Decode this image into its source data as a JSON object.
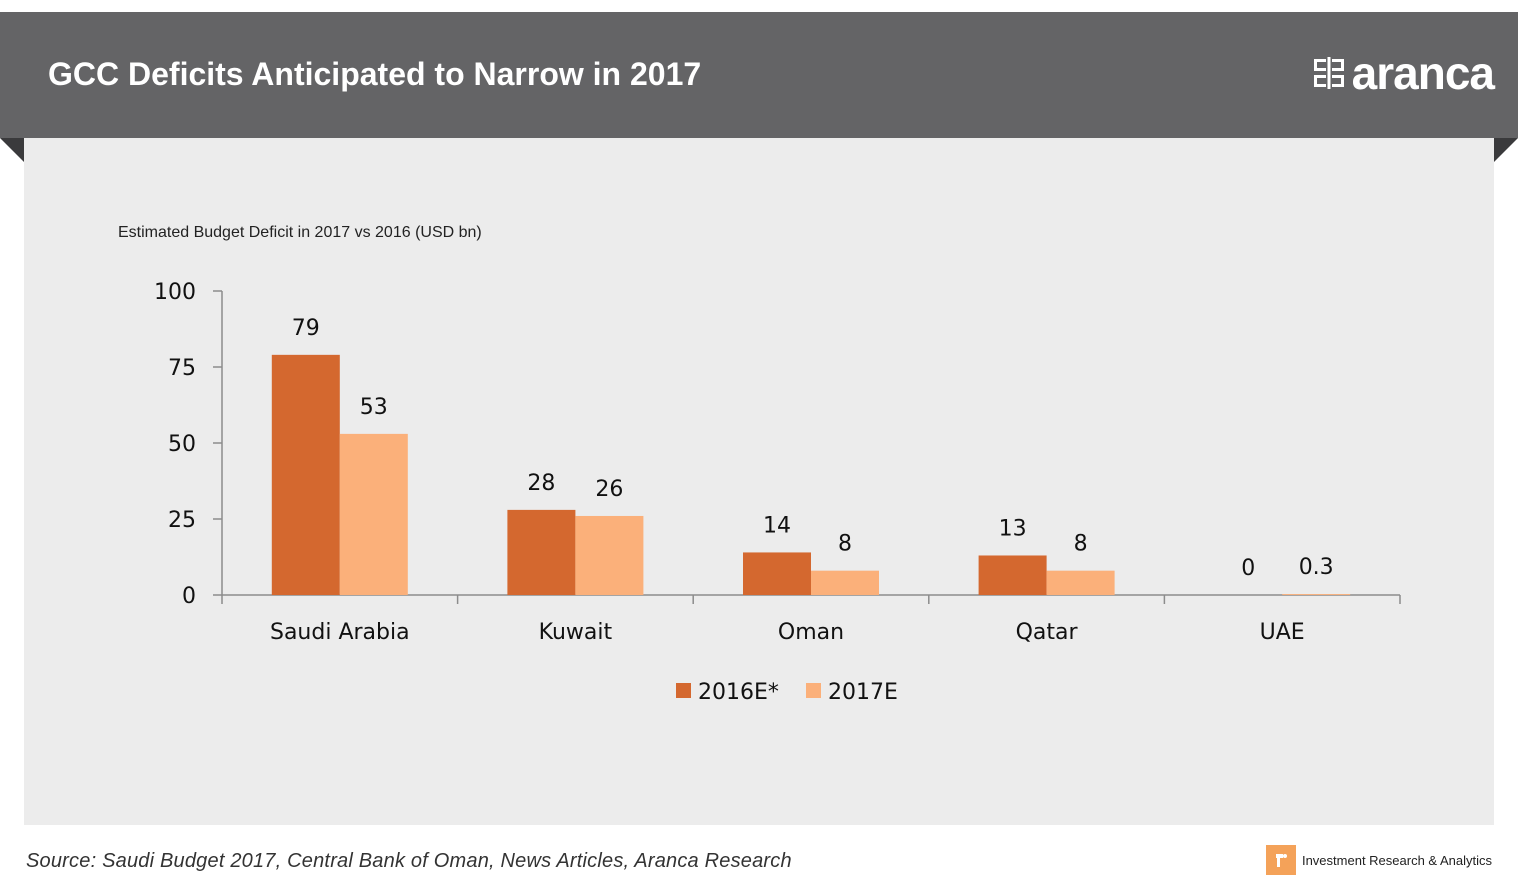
{
  "header": {
    "title": "GCC Deficits Anticipated to Narrow in 2017",
    "logo_text": "aranca",
    "logo_icon": "aranca-logo-icon"
  },
  "chart_data": {
    "type": "bar",
    "title": "Estimated Budget Deficit in 2017 vs 2016 (USD bn)",
    "categories": [
      "Saudi Arabia",
      "Kuwait",
      "Oman",
      "Qatar",
      "UAE"
    ],
    "series": [
      {
        "name": "2016E*",
        "values": [
          79,
          28,
          14,
          13,
          0
        ],
        "labels": [
          "79",
          "28",
          "14",
          "13",
          "0"
        ],
        "color": "#d4682f"
      },
      {
        "name": "2017E",
        "values": [
          53,
          26,
          8,
          8,
          0.3
        ],
        "labels": [
          "53",
          "26",
          "8",
          "8",
          "0.3"
        ],
        "color": "#fbb07a"
      }
    ],
    "yticks": [
      "0",
      "25",
      "50",
      "75",
      "100"
    ],
    "ylim": [
      0,
      100
    ],
    "grid": false,
    "legend_position": "bottom"
  },
  "footer": {
    "source": "Source: Saudi Budget 2017, Central Bank of Oman, News Articles, Aranca Research",
    "brand_text": "Investment Research & Analytics",
    "brand_icon": "aranca-badge-icon",
    "brand_color": "#f4a259"
  }
}
